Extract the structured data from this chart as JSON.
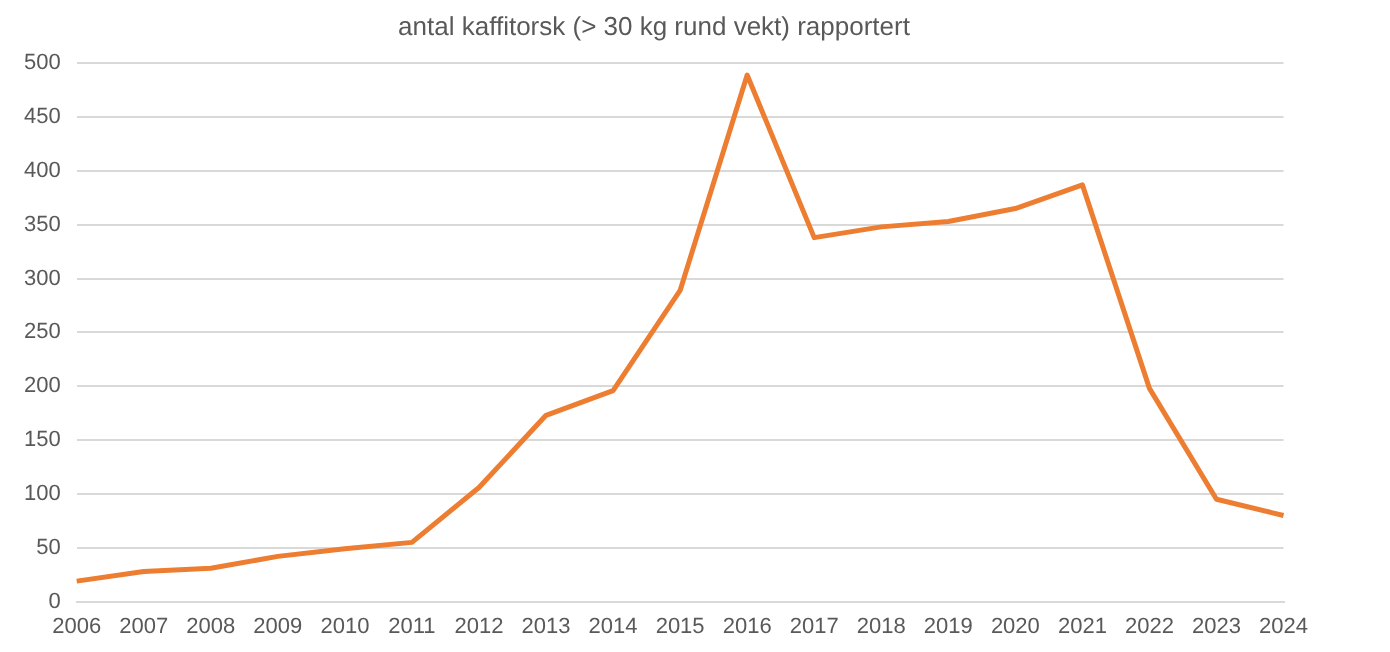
{
  "chart_data": {
    "type": "line",
    "title": "antal kaffitorsk (> 30 kg rund vekt) rapportert",
    "categories": [
      "2006",
      "2007",
      "2008",
      "2009",
      "2010",
      "2011",
      "2012",
      "2013",
      "2014",
      "2015",
      "2016",
      "2017",
      "2018",
      "2019",
      "2020",
      "2021",
      "2022",
      "2023",
      "2024"
    ],
    "series": [
      {
        "color": "#ed7d31",
        "values": [
          19,
          28,
          31,
          42,
          49,
          55,
          106,
          173,
          196,
          289,
          489,
          338,
          348,
          353,
          365,
          387,
          198,
          95,
          80
        ]
      }
    ],
    "ylim": [
      0,
      500
    ],
    "yticks": [
      0,
      50,
      100,
      150,
      200,
      250,
      300,
      350,
      400,
      450,
      500
    ],
    "grid": "y",
    "legend": false,
    "marker": "none",
    "line_style": "solid"
  }
}
